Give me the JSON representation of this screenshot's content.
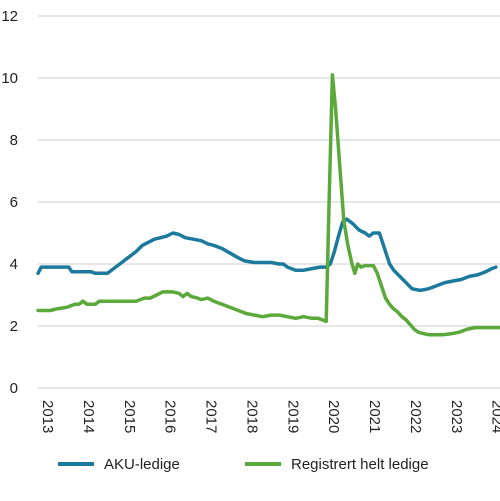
{
  "chart_data": {
    "type": "line",
    "title": "",
    "xlabel": "",
    "ylabel": "",
    "xlim": [
      2013,
      2024.3
    ],
    "ylim": [
      0,
      12
    ],
    "y_ticks": [
      0,
      2,
      4,
      6,
      8,
      10,
      12
    ],
    "x_ticks": [
      2013,
      2014,
      2015,
      2016,
      2017,
      2018,
      2019,
      2020,
      2021,
      2022,
      2023,
      2024
    ],
    "y_grid": true,
    "legend_position": "bottom",
    "series": [
      {
        "name": "AKU-ledige",
        "color": "#1b7a9e",
        "points": [
          [
            2013.0,
            3.7
          ],
          [
            2013.08,
            3.9
          ],
          [
            2013.5,
            3.9
          ],
          [
            2013.75,
            3.9
          ],
          [
            2013.83,
            3.75
          ],
          [
            2014.3,
            3.75
          ],
          [
            2014.4,
            3.7
          ],
          [
            2014.7,
            3.7
          ],
          [
            2014.85,
            3.85
          ],
          [
            2015.0,
            4.0
          ],
          [
            2015.2,
            4.2
          ],
          [
            2015.4,
            4.4
          ],
          [
            2015.55,
            4.6
          ],
          [
            2015.7,
            4.7
          ],
          [
            2015.85,
            4.8
          ],
          [
            2016.0,
            4.85
          ],
          [
            2016.15,
            4.9
          ],
          [
            2016.3,
            5.0
          ],
          [
            2016.45,
            4.95
          ],
          [
            2016.6,
            4.85
          ],
          [
            2016.8,
            4.8
          ],
          [
            2017.0,
            4.75
          ],
          [
            2017.15,
            4.65
          ],
          [
            2017.3,
            4.6
          ],
          [
            2017.5,
            4.5
          ],
          [
            2017.7,
            4.35
          ],
          [
            2017.9,
            4.2
          ],
          [
            2018.05,
            4.1
          ],
          [
            2018.3,
            4.05
          ],
          [
            2018.7,
            4.05
          ],
          [
            2018.9,
            4.0
          ],
          [
            2019.0,
            4.0
          ],
          [
            2019.1,
            3.9
          ],
          [
            2019.3,
            3.8
          ],
          [
            2019.5,
            3.8
          ],
          [
            2019.7,
            3.85
          ],
          [
            2019.9,
            3.9
          ],
          [
            2020.05,
            3.9
          ],
          [
            2020.15,
            4.0
          ],
          [
            2020.25,
            4.4
          ],
          [
            2020.35,
            4.9
          ],
          [
            2020.45,
            5.35
          ],
          [
            2020.55,
            5.45
          ],
          [
            2020.7,
            5.3
          ],
          [
            2020.85,
            5.1
          ],
          [
            2021.0,
            5.0
          ],
          [
            2021.1,
            4.9
          ],
          [
            2021.2,
            5.0
          ],
          [
            2021.35,
            5.0
          ],
          [
            2021.45,
            4.6
          ],
          [
            2021.6,
            4.0
          ],
          [
            2021.7,
            3.8
          ],
          [
            2021.85,
            3.6
          ],
          [
            2022.0,
            3.4
          ],
          [
            2022.15,
            3.2
          ],
          [
            2022.35,
            3.15
          ],
          [
            2022.55,
            3.2
          ],
          [
            2022.75,
            3.3
          ],
          [
            2022.95,
            3.4
          ],
          [
            2023.15,
            3.45
          ],
          [
            2023.35,
            3.5
          ],
          [
            2023.55,
            3.6
          ],
          [
            2023.75,
            3.65
          ],
          [
            2023.95,
            3.75
          ],
          [
            2024.1,
            3.85
          ],
          [
            2024.2,
            3.9
          ]
        ]
      },
      {
        "name": "Registrert helt ledige",
        "color": "#5aa93a",
        "points": [
          [
            2013.0,
            2.5
          ],
          [
            2013.3,
            2.5
          ],
          [
            2013.45,
            2.55
          ],
          [
            2013.7,
            2.6
          ],
          [
            2013.9,
            2.7
          ],
          [
            2014.0,
            2.7
          ],
          [
            2014.1,
            2.8
          ],
          [
            2014.2,
            2.7
          ],
          [
            2014.4,
            2.7
          ],
          [
            2014.5,
            2.8
          ],
          [
            2014.8,
            2.8
          ],
          [
            2015.0,
            2.8
          ],
          [
            2015.4,
            2.8
          ],
          [
            2015.6,
            2.9
          ],
          [
            2015.75,
            2.9
          ],
          [
            2015.9,
            3.0
          ],
          [
            2016.05,
            3.1
          ],
          [
            2016.3,
            3.1
          ],
          [
            2016.45,
            3.05
          ],
          [
            2016.55,
            2.95
          ],
          [
            2016.65,
            3.05
          ],
          [
            2016.75,
            2.95
          ],
          [
            2016.9,
            2.9
          ],
          [
            2017.0,
            2.85
          ],
          [
            2017.15,
            2.9
          ],
          [
            2017.3,
            2.8
          ],
          [
            2017.5,
            2.7
          ],
          [
            2017.7,
            2.6
          ],
          [
            2017.9,
            2.5
          ],
          [
            2018.1,
            2.4
          ],
          [
            2018.3,
            2.35
          ],
          [
            2018.5,
            2.3
          ],
          [
            2018.7,
            2.35
          ],
          [
            2018.9,
            2.35
          ],
          [
            2019.1,
            2.3
          ],
          [
            2019.3,
            2.25
          ],
          [
            2019.5,
            2.3
          ],
          [
            2019.7,
            2.25
          ],
          [
            2019.85,
            2.25
          ],
          [
            2019.95,
            2.2
          ],
          [
            2020.05,
            2.15
          ],
          [
            2020.12,
            6.0
          ],
          [
            2020.2,
            10.1
          ],
          [
            2020.28,
            9.0
          ],
          [
            2020.38,
            7.2
          ],
          [
            2020.48,
            5.4
          ],
          [
            2020.58,
            4.6
          ],
          [
            2020.68,
            4.0
          ],
          [
            2020.75,
            3.7
          ],
          [
            2020.82,
            4.0
          ],
          [
            2020.9,
            3.9
          ],
          [
            2021.0,
            3.95
          ],
          [
            2021.1,
            3.95
          ],
          [
            2021.2,
            3.95
          ],
          [
            2021.3,
            3.7
          ],
          [
            2021.4,
            3.3
          ],
          [
            2021.5,
            2.9
          ],
          [
            2021.6,
            2.7
          ],
          [
            2021.7,
            2.55
          ],
          [
            2021.8,
            2.45
          ],
          [
            2021.9,
            2.3
          ],
          [
            2022.0,
            2.2
          ],
          [
            2022.1,
            2.05
          ],
          [
            2022.2,
            1.9
          ],
          [
            2022.3,
            1.8
          ],
          [
            2022.45,
            1.75
          ],
          [
            2022.55,
            1.72
          ],
          [
            2022.7,
            1.72
          ],
          [
            2022.9,
            1.72
          ],
          [
            2023.1,
            1.75
          ],
          [
            2023.3,
            1.8
          ],
          [
            2023.5,
            1.9
          ],
          [
            2023.7,
            1.95
          ],
          [
            2023.9,
            1.95
          ],
          [
            2024.1,
            1.95
          ],
          [
            2024.3,
            1.95
          ]
        ]
      }
    ]
  },
  "legend": {
    "items": [
      {
        "label": "AKU-ledige",
        "color": "#1b7a9e"
      },
      {
        "label": "Registrert helt ledige",
        "color": "#5aa93a"
      }
    ]
  }
}
